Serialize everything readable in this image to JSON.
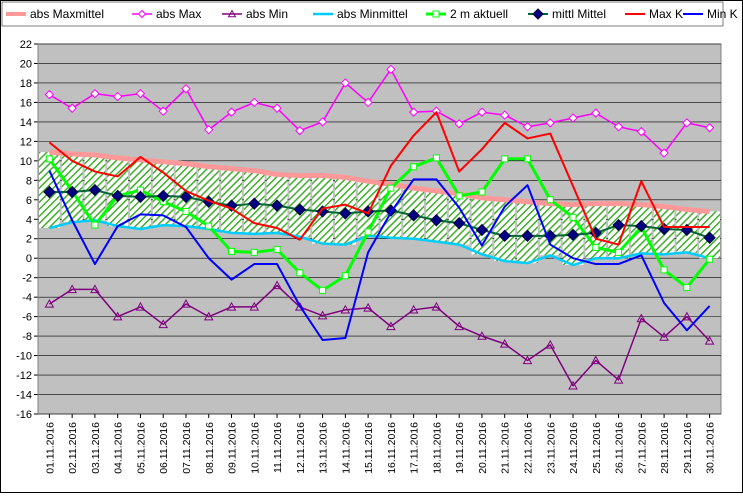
{
  "chart_data": {
    "type": "line",
    "title": "",
    "xlabel": "",
    "ylabel": "",
    "ylim": [
      -16,
      22
    ],
    "ystep": 2,
    "grid": true,
    "legend_placement": "top",
    "categories": [
      "01.11.2016",
      "02.11.2016",
      "03.11.2016",
      "04.11.2016",
      "05.11.2016",
      "06.11.2016",
      "07.11.2016",
      "08.11.2016",
      "09.11.2016",
      "10.11.2016",
      "11.11.2016",
      "12.11.2016",
      "13.11.2016",
      "14.11.2016",
      "15.11.2016",
      "16.11.2016",
      "17.11.2016",
      "18.11.2016",
      "19.11.2016",
      "20.11.2016",
      "21.11.2016",
      "22.11.2016",
      "23.11.2016",
      "24.11.2016",
      "25.11.2016",
      "26.11.2016",
      "27.11.2016",
      "28.11.2016",
      "29.11.2016",
      "30.11.2016"
    ],
    "series": [
      {
        "name": "abs Maxmittel",
        "color": "#ff9999",
        "marker": "none",
        "width": 5,
        "values": [
          10.9,
          10.7,
          10.6,
          10.3,
          10.1,
          9.9,
          9.7,
          9.4,
          9.2,
          9.0,
          8.6,
          8.5,
          8.5,
          8.3,
          7.9,
          7.6,
          7.2,
          6.9,
          6.6,
          6.2,
          6.0,
          5.8,
          5.6,
          5.5,
          5.6,
          5.6,
          5.5,
          5.3,
          5.0,
          4.8
        ]
      },
      {
        "name": "abs Max",
        "color": "#ff00ff",
        "marker": "diamond-open",
        "width": 1.5,
        "values": [
          16.8,
          15.4,
          16.9,
          16.6,
          16.9,
          15.1,
          17.4,
          13.2,
          15.0,
          16.0,
          15.4,
          13.1,
          14.0,
          18.0,
          16.0,
          19.4,
          15.0,
          15.1,
          13.8,
          15.0,
          14.7,
          13.5,
          13.9,
          14.4,
          14.9,
          13.5,
          13.0,
          10.8,
          13.9,
          13.4
        ]
      },
      {
        "name": "abs Min",
        "color": "#800080",
        "marker": "triangle-open",
        "width": 1.5,
        "values": [
          -4.7,
          -3.2,
          -3.2,
          -6.0,
          -5.0,
          -6.8,
          -4.7,
          -6.0,
          -5.0,
          -5.0,
          -2.8,
          -5.0,
          -5.9,
          -5.3,
          -5.1,
          -7.0,
          -5.3,
          -5.0,
          -7.0,
          -8.0,
          -8.8,
          -10.5,
          -8.9,
          -13.1,
          -10.5,
          -12.5,
          -6.2,
          -8.1,
          -6.0,
          -8.5
        ]
      },
      {
        "name": "abs Minmittel",
        "color": "#00ccff",
        "marker": "none",
        "width": 2.5,
        "values": [
          3.1,
          3.7,
          3.9,
          3.3,
          3.0,
          3.4,
          3.3,
          3.0,
          2.6,
          2.5,
          2.6,
          2.2,
          1.5,
          1.4,
          2.3,
          2.1,
          2.0,
          1.7,
          1.4,
          0.4,
          -0.3,
          -0.5,
          0.3,
          -0.7,
          0.0,
          0.0,
          0.5,
          0.4,
          0.6,
          0.0
        ]
      },
      {
        "name": "2 m aktuell",
        "color": "#00ff00",
        "marker": "square-open",
        "width": 3,
        "values": [
          10.2,
          6.9,
          3.4,
          6.4,
          7.0,
          5.8,
          4.8,
          3.3,
          0.7,
          0.6,
          0.9,
          -1.5,
          -3.3,
          -1.8,
          2.7,
          7.2,
          9.4,
          10.3,
          6.4,
          6.8,
          10.2,
          10.2,
          6.0,
          4.2,
          1.1,
          0.6,
          3.2,
          -1.2,
          -3.0,
          -0.1
        ]
      },
      {
        "name": "mittl Mittel",
        "color": "#006633",
        "marker": "diamond-filled",
        "width": 2,
        "values": [
          6.8,
          6.8,
          7.0,
          6.4,
          6.3,
          6.4,
          6.3,
          5.8,
          5.4,
          5.6,
          5.4,
          5.0,
          4.8,
          4.6,
          4.8,
          4.9,
          4.4,
          3.9,
          3.6,
          2.9,
          2.3,
          2.3,
          2.3,
          2.4,
          2.6,
          3.4,
          3.3,
          3.0,
          2.9,
          2.1
        ]
      },
      {
        "name": "Max K",
        "color": "#ff0000",
        "marker": "none",
        "width": 2,
        "values": [
          11.9,
          10.0,
          8.9,
          8.4,
          10.4,
          8.8,
          6.9,
          5.9,
          5.1,
          3.6,
          3.1,
          1.9,
          5.1,
          5.5,
          4.6,
          9.5,
          12.6,
          15.0,
          8.9,
          11.2,
          13.9,
          12.3,
          12.8,
          7.4,
          2.0,
          1.4,
          7.9,
          3.2,
          3.2,
          3.2
        ]
      },
      {
        "name": "Min K",
        "color": "#0000ff",
        "marker": "none",
        "width": 2,
        "values": [
          9.0,
          3.9,
          -0.6,
          3.3,
          4.5,
          4.4,
          3.2,
          0.0,
          -2.2,
          -0.6,
          -0.6,
          -4.9,
          -8.4,
          -8.2,
          0.6,
          4.7,
          8.1,
          8.1,
          5.2,
          1.3,
          5.3,
          7.5,
          1.4,
          0.0,
          -0.6,
          -0.6,
          0.3,
          -4.6,
          -7.4,
          -4.9
        ]
      }
    ]
  }
}
